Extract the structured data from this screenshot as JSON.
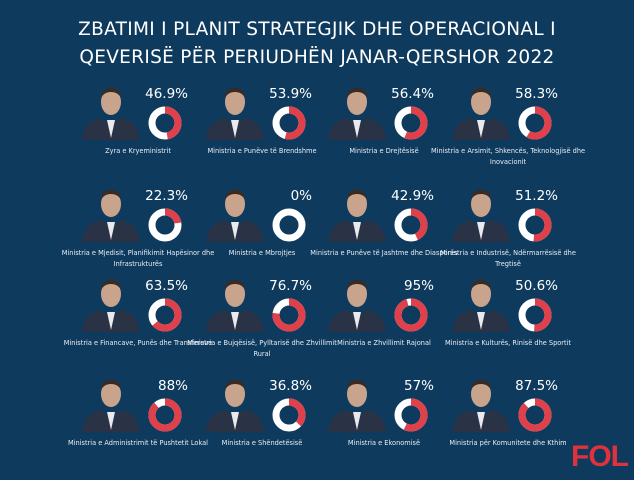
{
  "title": {
    "line1": "ZBATIMI I PLANIT STRATEGJIK DHE OPERACIONAL I",
    "line2": "QEVERISË PËR PERIUDHËN JANAR-QERSHOR 2022"
  },
  "colors": {
    "background": "#0e3a5d",
    "ring": "#ffffff",
    "progress": "#e0404a"
  },
  "ministries": [
    {
      "label": "Zyra e Kryeministrit",
      "percent_text": "46.9%",
      "percent": 46.9
    },
    {
      "label": "Ministria e Punëve të Brendshme",
      "percent_text": "53.9%",
      "percent": 53.9
    },
    {
      "label": "Ministria e Drejtësisë",
      "percent_text": "56.4%",
      "percent": 56.4
    },
    {
      "label": "Ministria e Arsimit, Shkencës, Teknologjisë dhe Inovacionit",
      "percent_text": "58.3%",
      "percent": 58.3
    },
    {
      "label": "Ministria e Mjedisit, Planifikimit Hapësinor dhe Infrastrukturës",
      "percent_text": "22.3%",
      "percent": 22.3
    },
    {
      "label": "Ministria e Mbrojtjes",
      "percent_text": "0%",
      "percent": 0
    },
    {
      "label": "Ministria e Punëve të Jashtme dhe Diasporës",
      "percent_text": "42.9%",
      "percent": 42.9
    },
    {
      "label": "Ministria e Industrisë, Ndërmarrësisë dhe Tregtisë",
      "percent_text": "51.2%",
      "percent": 51.2
    },
    {
      "label": "Ministria e Financave, Punës dhe Transfereve",
      "percent_text": "63.5%",
      "percent": 63.5
    },
    {
      "label": "Ministria e Bujqësisë, Pylltarisë dhe Zhvillimit Rural",
      "percent_text": "76.7%",
      "percent": 76.7
    },
    {
      "label": "Ministria e Zhvillimit Rajonal",
      "percent_text": "95%",
      "percent": 95
    },
    {
      "label": "Ministria e Kulturës, Rinisë dhe Sportit",
      "percent_text": "50.6%",
      "percent": 50.6
    },
    {
      "label": "Ministria e Administrimit të Pushtetit Lokal",
      "percent_text": "88%",
      "percent": 88
    },
    {
      "label": "Ministria e Shëndetësisë",
      "percent_text": "36.8%",
      "percent": 36.8
    },
    {
      "label": "Ministria e Ekonomisë",
      "percent_text": "57%",
      "percent": 57
    },
    {
      "label": "Ministria për Komunitete dhe Kthim",
      "percent_text": "87.5%",
      "percent": 87.5
    }
  ],
  "logo": "FOL"
}
